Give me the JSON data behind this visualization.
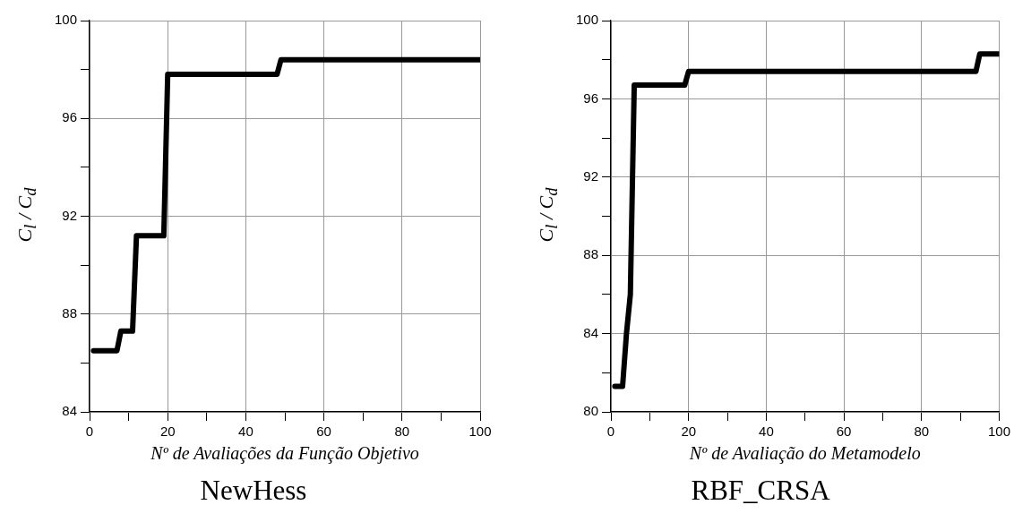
{
  "chart_data": [
    {
      "type": "line",
      "title": "NewHess",
      "xlabel": "Nº de Avaliações da Função Objetivo",
      "ylabel": "C$_{l}$ / C$_{d}$",
      "x": [
        1,
        7,
        8,
        11,
        12,
        19,
        20,
        48,
        49,
        100
      ],
      "series": [
        {
          "color": "#000000",
          "values": [
            86.5,
            86.5,
            87.3,
            87.3,
            91.2,
            91.2,
            97.8,
            97.8,
            98.4,
            98.4
          ]
        }
      ],
      "xlim": [
        0,
        100
      ],
      "xticks": [
        0,
        {
          "value": 10,
          "label": null
        },
        20,
        {
          "value": 30,
          "label": null
        },
        40,
        {
          "value": 50,
          "label": null
        },
        60,
        {
          "value": 70,
          "label": null
        },
        80,
        {
          "value": 90,
          "label": null
        },
        100
      ],
      "ylim": [
        84,
        100
      ],
      "yticks": [
        84,
        {
          "value": 86,
          "label": null
        },
        88,
        {
          "value": 90,
          "label": null
        },
        92,
        {
          "value": 94,
          "label": null
        },
        96,
        {
          "value": 98,
          "label": null
        },
        100
      ],
      "grid": true,
      "legend": false,
      "marker": "none",
      "line_style": "solid"
    },
    {
      "type": "line",
      "title": "RBF_CRSA",
      "xlabel": "Nº de Avaliação do Metamodelo",
      "ylabel": "C$_{l}$ / C$_{d}$",
      "x": [
        1,
        3,
        4,
        5,
        6,
        19,
        20,
        94,
        95,
        100
      ],
      "series": [
        {
          "color": "#000000",
          "values": [
            81.3,
            81.3,
            84,
            86,
            96.7,
            96.7,
            97.4,
            97.4,
            98.3,
            98.3
          ]
        }
      ],
      "xlim": [
        0,
        100
      ],
      "xticks": [
        0,
        {
          "value": 10,
          "label": null
        },
        20,
        {
          "value": 30,
          "label": null
        },
        40,
        {
          "value": 50,
          "label": null
        },
        60,
        {
          "value": 70,
          "label": null
        },
        80,
        {
          "value": 90,
          "label": null
        },
        100
      ],
      "ylim": [
        80,
        100
      ],
      "yticks": [
        80,
        {
          "value": 82,
          "label": null
        },
        84,
        {
          "value": 86,
          "label": null
        },
        88,
        {
          "value": 90,
          "label": null
        },
        92,
        {
          "value": 94,
          "label": null
        },
        96,
        {
          "value": 98,
          "label": null
        },
        100
      ],
      "grid": true,
      "legend": false,
      "marker": "none",
      "line_style": "solid"
    }
  ]
}
